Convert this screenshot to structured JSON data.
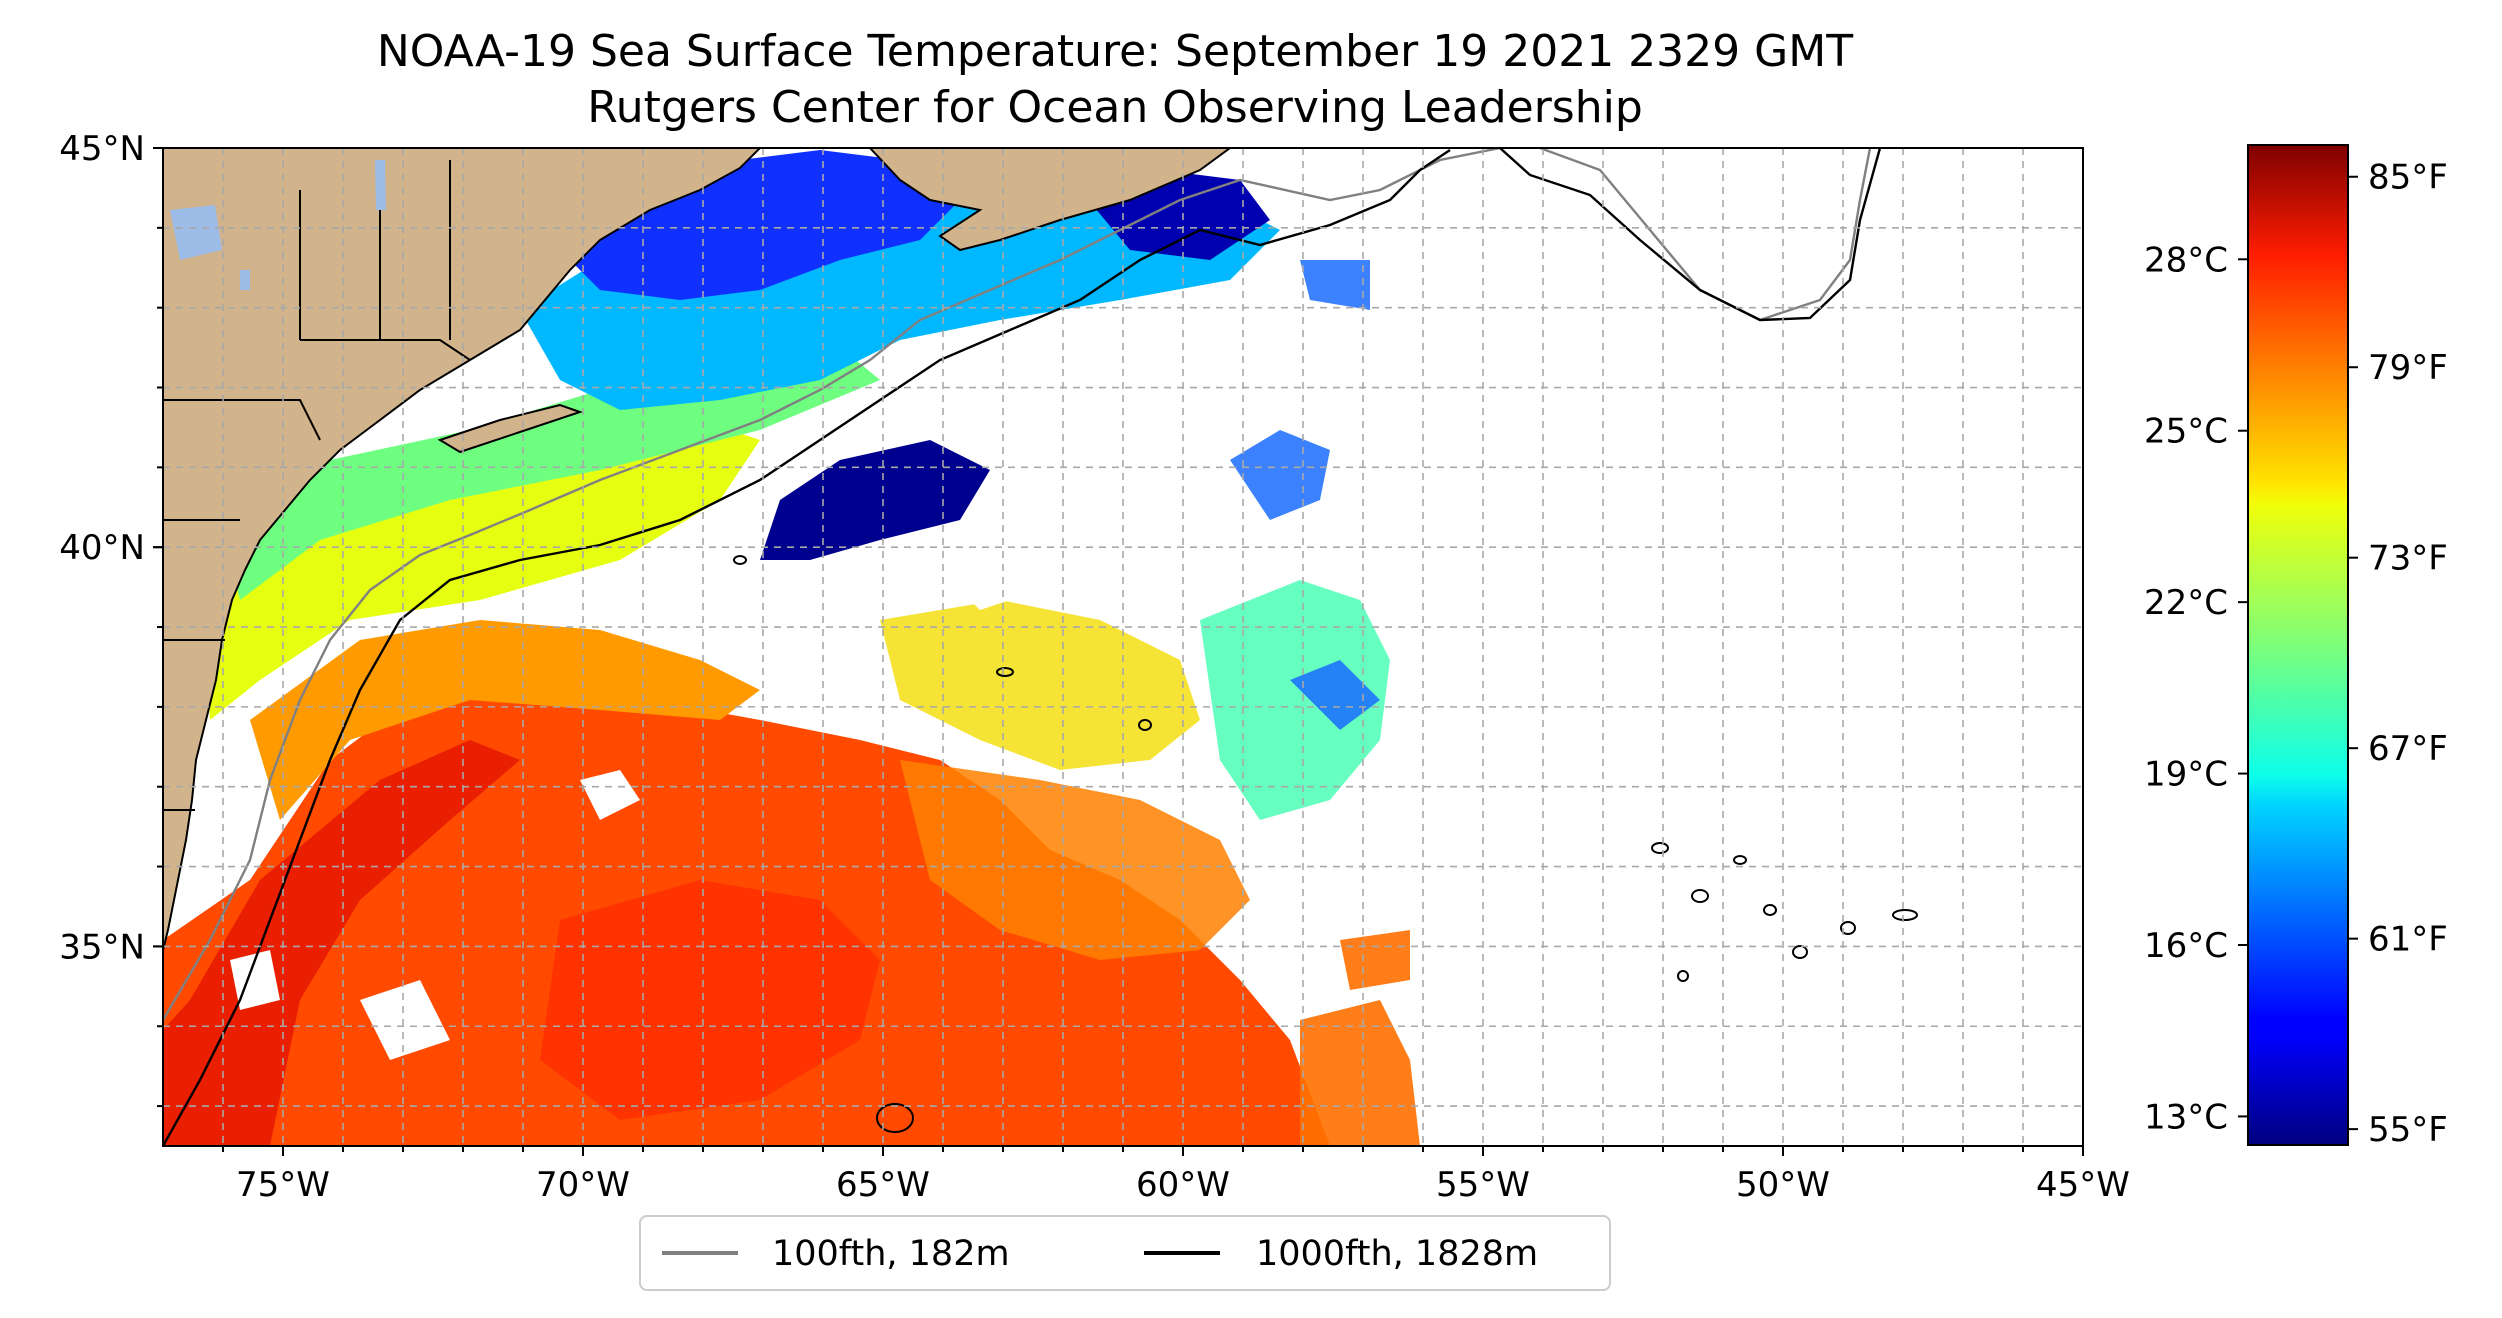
{
  "title": {
    "line1": "NOAA-19 Sea Surface Temperature: September 19 2021 2329 GMT",
    "line2": "Rutgers Center for Ocean Observing Leadership"
  },
  "map": {
    "lon_range": [
      -77,
      -45
    ],
    "lat_range": [
      32.5,
      45
    ],
    "x_ticks": [
      {
        "lon": -75,
        "label": "75°W"
      },
      {
        "lon": -70,
        "label": "70°W"
      },
      {
        "lon": -65,
        "label": "65°W"
      },
      {
        "lon": -60,
        "label": "60°W"
      },
      {
        "lon": -55,
        "label": "55°W"
      },
      {
        "lon": -50,
        "label": "50°W"
      },
      {
        "lon": -45,
        "label": "45°W"
      }
    ],
    "y_ticks": [
      {
        "lat": 45,
        "label": "45°N"
      },
      {
        "lat": 40,
        "label": "40°N"
      },
      {
        "lat": 35,
        "label": "35°N"
      }
    ],
    "grid_lons": [
      -76,
      -75,
      -74,
      -73,
      -72,
      -71,
      -70,
      -69,
      -68,
      -67,
      -66,
      -65,
      -64,
      -63,
      -62,
      -61,
      -60,
      -59,
      -58,
      -57,
      -56,
      -55,
      -54,
      -53,
      -52,
      -51,
      -50,
      -49,
      -48,
      -47,
      -46
    ],
    "grid_lats": [
      33,
      34,
      35,
      36,
      37,
      38,
      39,
      40,
      41,
      42,
      43,
      44
    ],
    "colors": {
      "land": "#d2b48c",
      "lake": "#9dbde8",
      "contour_100": "#808080",
      "contour_1000": "#000000"
    }
  },
  "legend": {
    "items": [
      {
        "label": "100fth, 182m",
        "color": "#808080"
      },
      {
        "label": "1000fth, 1828m",
        "color": "#000000"
      }
    ]
  },
  "colorbar": {
    "colormap": "jet",
    "range_f": [
      54.5,
      86
    ],
    "celsius_ticks": [
      {
        "value": 13,
        "label": "13°C"
      },
      {
        "value": 16,
        "label": "16°C"
      },
      {
        "value": 19,
        "label": "19°C"
      },
      {
        "value": 22,
        "label": "22°C"
      },
      {
        "value": 25,
        "label": "25°C"
      },
      {
        "value": 28,
        "label": "28°C"
      }
    ],
    "fahrenheit_ticks": [
      {
        "value": 55,
        "label": "55°F"
      },
      {
        "value": 61,
        "label": "61°F"
      },
      {
        "value": 67,
        "label": "67°F"
      },
      {
        "value": 73,
        "label": "73°F"
      },
      {
        "value": 79,
        "label": "79°F"
      },
      {
        "value": 85,
        "label": "85°F"
      }
    ]
  }
}
